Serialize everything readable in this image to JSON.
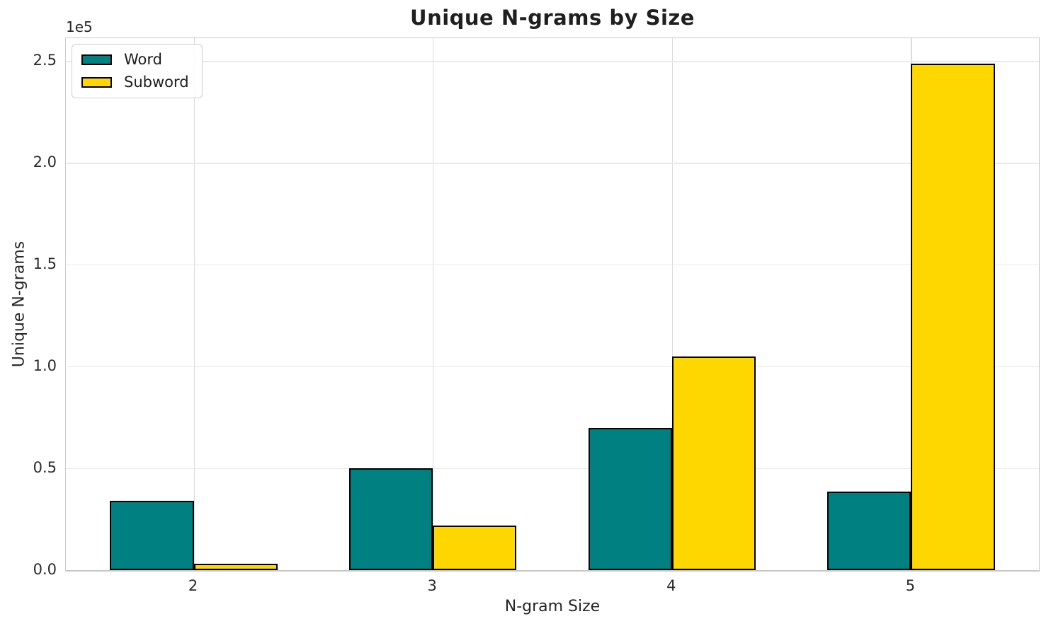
{
  "chart_data": {
    "type": "bar",
    "title": "Unique N-grams by Size",
    "xlabel": "N-gram Size",
    "ylabel": "Unique N-grams",
    "y_offset_label": "1e5",
    "categories": [
      "2",
      "3",
      "4",
      "5"
    ],
    "series": [
      {
        "name": "Word",
        "color": "#008080",
        "values": [
          34000,
          50000,
          70000,
          38400
        ]
      },
      {
        "name": "Subword",
        "color": "#FFD700",
        "values": [
          3000,
          22000,
          104800,
          248800
        ]
      }
    ],
    "bar_edge_color": "#000000",
    "bar_width": 0.35,
    "x_tick_labels": [
      "2",
      "3",
      "4",
      "5"
    ],
    "y_tick_labels": [
      "0.0",
      "0.5",
      "1.0",
      "1.5",
      "2.0",
      "2.5"
    ],
    "y_tick_multiplier": 100000,
    "ylim": [
      0,
      261274
    ],
    "xlim": [
      1.465,
      5.535
    ],
    "grid": true,
    "grid_color": "#e9e9e9",
    "spine_color": "#cbcbcb",
    "background_color": "#ffffff",
    "legend_position": "upper left"
  }
}
